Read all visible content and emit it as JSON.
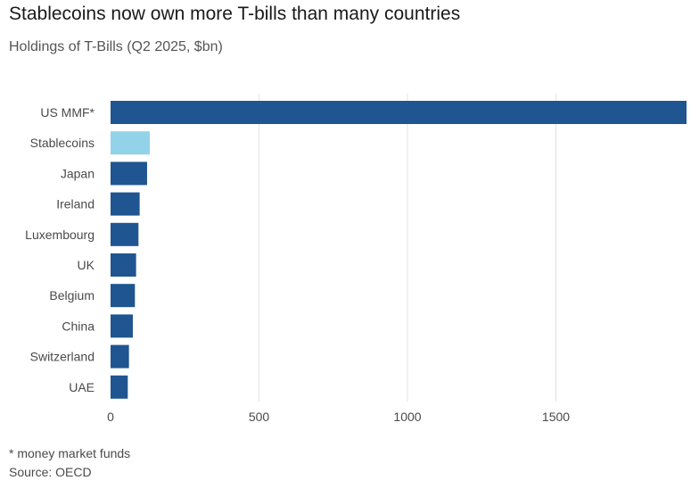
{
  "header": {
    "title": "Stablecoins now own more T-bills than many countries",
    "subtitle": "Holdings of T-Bills (Q2 2025, $bn)"
  },
  "footer": {
    "footnote": "* money market funds",
    "source": "Source: OECD"
  },
  "colors": {
    "bar_default": "#1f5590",
    "bar_highlight": "#92d3ea",
    "grid": "#e3e3e3"
  },
  "chart_data": {
    "type": "bar",
    "orientation": "horizontal",
    "title": "Stablecoins now own more T-bills than many countries",
    "subtitle": "Holdings of T-Bills (Q2 2025, $bn)",
    "categories": [
      "US MMF*",
      "Stablecoins",
      "Japan",
      "Ireland",
      "Luxembourg",
      "UK",
      "Belgium",
      "China",
      "Switzerland",
      "UAE"
    ],
    "values": [
      1940,
      132,
      123,
      98,
      94,
      86,
      82,
      75,
      62,
      58
    ],
    "highlight": "Stablecoins",
    "xlim": [
      0,
      1940
    ],
    "xticks": [
      0,
      500,
      1000,
      1500
    ],
    "grid": true,
    "legend": "none"
  }
}
